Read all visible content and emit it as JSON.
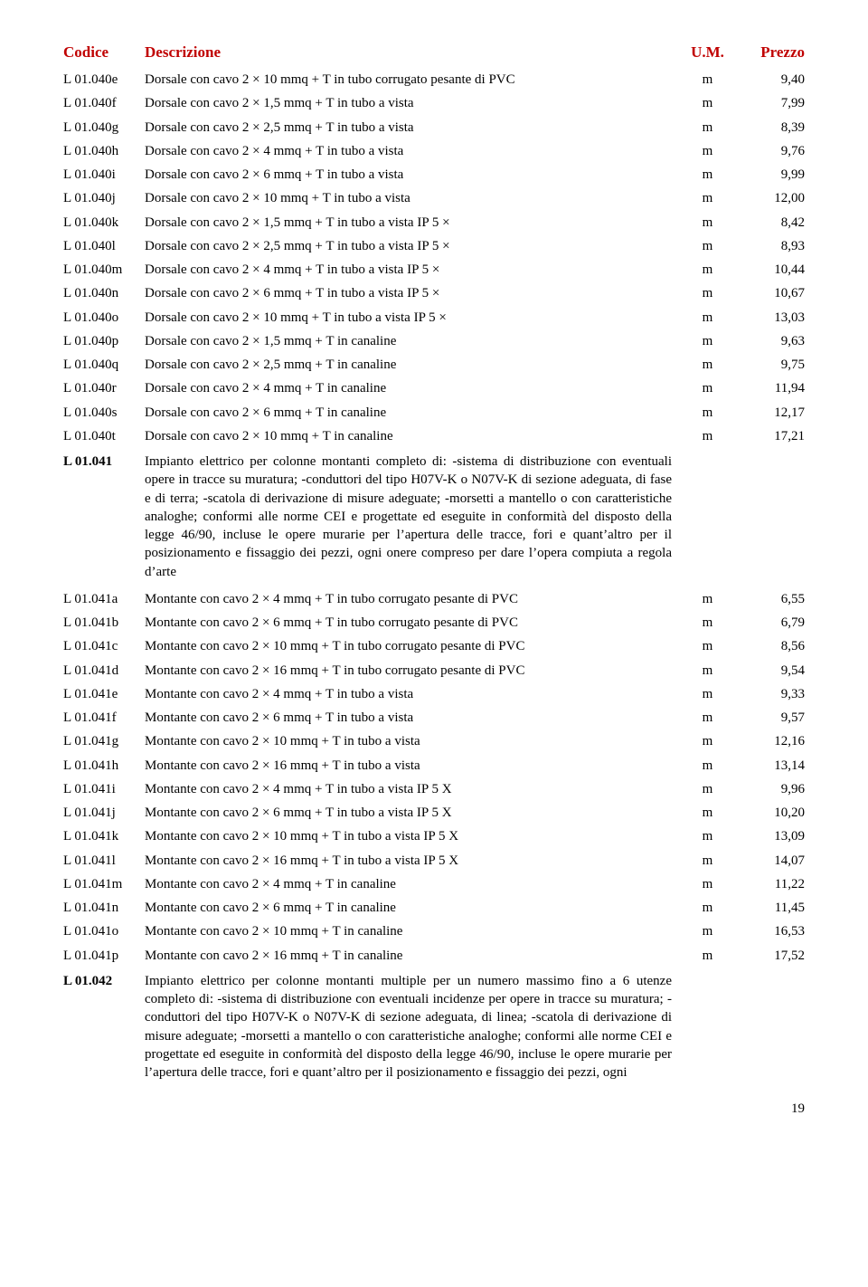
{
  "header": {
    "code": "Codice",
    "desc": "Descrizione",
    "um": "U.M.",
    "price": "Prezzo"
  },
  "colors": {
    "header_text": "#c00000",
    "body_text": "#000000",
    "background": "#ffffff"
  },
  "rows": [
    {
      "type": "item",
      "code": "L 01.040e",
      "desc": "Dorsale con cavo 2 × 10 mmq + T in tubo corrugato pesante di PVC",
      "um": "m",
      "price": "9,40"
    },
    {
      "type": "item",
      "code": "L 01.040f",
      "desc": "Dorsale con cavo 2 × 1,5 mmq + T in tubo a vista",
      "um": "m",
      "price": "7,99"
    },
    {
      "type": "item",
      "code": "L 01.040g",
      "desc": "Dorsale con cavo 2 × 2,5 mmq + T in tubo a vista",
      "um": "m",
      "price": "8,39"
    },
    {
      "type": "item",
      "code": "L 01.040h",
      "desc": "Dorsale con cavo 2 × 4 mmq + T in tubo a vista",
      "um": "m",
      "price": "9,76"
    },
    {
      "type": "item",
      "code": "L 01.040i",
      "desc": "Dorsale con cavo 2 × 6 mmq + T in tubo a vista",
      "um": "m",
      "price": "9,99"
    },
    {
      "type": "item",
      "code": "L 01.040j",
      "desc": "Dorsale con cavo 2 × 10 mmq + T in tubo a vista",
      "um": "m",
      "price": "12,00"
    },
    {
      "type": "item",
      "code": "L 01.040k",
      "desc": "Dorsale con cavo 2 × 1,5 mmq + T in tubo a vista IP 5 ×",
      "um": "m",
      "price": "8,42"
    },
    {
      "type": "item",
      "code": "L 01.040l",
      "desc": "Dorsale con cavo 2 × 2,5 mmq + T in tubo a vista IP 5 ×",
      "um": "m",
      "price": "8,93"
    },
    {
      "type": "item",
      "code": "L 01.040m",
      "desc": "Dorsale con cavo 2 × 4 mmq + T in tubo a vista IP 5 ×",
      "um": "m",
      "price": "10,44"
    },
    {
      "type": "item",
      "code": "L 01.040n",
      "desc": "Dorsale con cavo 2 × 6 mmq + T in tubo a vista IP 5 ×",
      "um": "m",
      "price": "10,67"
    },
    {
      "type": "item",
      "code": "L 01.040o",
      "desc": "Dorsale con cavo 2 × 10 mmq + T in tubo a vista IP 5 ×",
      "um": "m",
      "price": "13,03"
    },
    {
      "type": "item",
      "code": "L 01.040p",
      "desc": "Dorsale con cavo 2 × 1,5 mmq + T in canaline",
      "um": "m",
      "price": "9,63"
    },
    {
      "type": "item",
      "code": "L 01.040q",
      "desc": "Dorsale con cavo 2 × 2,5 mmq + T in canaline",
      "um": "m",
      "price": "9,75"
    },
    {
      "type": "item",
      "code": "L 01.040r",
      "desc": "Dorsale con cavo 2 × 4 mmq + T in canaline",
      "um": "m",
      "price": "11,94"
    },
    {
      "type": "item",
      "code": "L 01.040s",
      "desc": "Dorsale con cavo 2 × 6 mmq + T in canaline",
      "um": "m",
      "price": "12,17"
    },
    {
      "type": "item",
      "code": "L 01.040t",
      "desc": "Dorsale con cavo 2 × 10 mmq + T in canaline",
      "um": "m",
      "price": "17,21"
    },
    {
      "type": "section",
      "code": "L 01.041",
      "desc": "Impianto elettrico per colonne montanti completo di: -sistema di distribuzione con eventuali opere in tracce su muratura; -conduttori del tipo H07V-K o N07V-K di sezione adeguata, di fase e di terra; -scatola di derivazione di misure adeguate; -morsetti a mantello o con caratteristiche analoghe; conformi alle norme CEI e progettate ed eseguite in conformità del disposto della legge 46/90, incluse le opere murarie per l’apertura delle tracce, fori e quant’altro per il posizionamento e fissaggio dei pezzi, ogni onere compreso per dare l’opera compiuta a regola d’arte"
    },
    {
      "type": "item",
      "code": "L 01.041a",
      "desc": "Montante con cavo 2 × 4 mmq + T in tubo corrugato pesante di PVC",
      "um": "m",
      "price": "6,55"
    },
    {
      "type": "item",
      "code": "L 01.041b",
      "desc": "Montante con cavo 2 × 6 mmq + T in tubo corrugato pesante di PVC",
      "um": "m",
      "price": "6,79"
    },
    {
      "type": "item",
      "code": "L 01.041c",
      "desc": "Montante con cavo 2 × 10 mmq + T in tubo corrugato pesante di PVC",
      "um": "m",
      "price": "8,56"
    },
    {
      "type": "item",
      "code": "L 01.041d",
      "desc": "Montante con cavo 2 × 16 mmq + T in tubo corrugato pesante di PVC",
      "um": "m",
      "price": "9,54"
    },
    {
      "type": "item",
      "code": "L 01.041e",
      "desc": "Montante con cavo 2 × 4 mmq + T in tubo a vista",
      "um": "m",
      "price": "9,33"
    },
    {
      "type": "item",
      "code": "L 01.041f",
      "desc": "Montante con cavo 2 × 6 mmq + T in tubo a vista",
      "um": "m",
      "price": "9,57"
    },
    {
      "type": "item",
      "code": "L 01.041g",
      "desc": "Montante con cavo 2 × 10 mmq + T in tubo a vista",
      "um": "m",
      "price": "12,16"
    },
    {
      "type": "item",
      "code": "L 01.041h",
      "desc": "Montante con cavo 2 × 16 mmq + T in tubo a vista",
      "um": "m",
      "price": "13,14"
    },
    {
      "type": "item",
      "code": "L 01.041i",
      "desc": "Montante con cavo 2 × 4 mmq + T in tubo a vista IP 5 X",
      "um": "m",
      "price": "9,96"
    },
    {
      "type": "item",
      "code": "L 01.041j",
      "desc": "Montante con cavo 2 × 6 mmq + T in tubo a vista IP 5 X",
      "um": "m",
      "price": "10,20"
    },
    {
      "type": "item",
      "code": "L 01.041k",
      "desc": "Montante con cavo 2 × 10 mmq + T in tubo a vista IP 5 X",
      "um": "m",
      "price": "13,09"
    },
    {
      "type": "item",
      "code": "L 01.041l",
      "desc": "Montante con cavo 2 × 16 mmq + T in tubo a vista IP 5 X",
      "um": "m",
      "price": "14,07"
    },
    {
      "type": "item",
      "code": "L 01.041m",
      "desc": "Montante con cavo 2 × 4 mmq + T in canaline",
      "um": "m",
      "price": "11,22"
    },
    {
      "type": "item",
      "code": "L 01.041n",
      "desc": "Montante con cavo 2 × 6 mmq + T in canaline",
      "um": "m",
      "price": "11,45"
    },
    {
      "type": "item",
      "code": "L 01.041o",
      "desc": "Montante con cavo 2 × 10 mmq + T in canaline",
      "um": "m",
      "price": "16,53"
    },
    {
      "type": "item",
      "code": "L 01.041p",
      "desc": "Montante con cavo 2 × 16 mmq + T in canaline",
      "um": "m",
      "price": "17,52"
    },
    {
      "type": "section",
      "code": "L 01.042",
      "desc": "Impianto elettrico per colonne montanti multiple per un numero massimo fino a 6 utenze completo di: -sistema di distribuzione con eventuali incidenze per opere in tracce su muratura; -conduttori del tipo H07V-K o N07V-K di sezione adeguata, di linea; -scatola di derivazione di misure adeguate; -morsetti a mantello o con caratteristiche analoghe; conformi alle norme CEI e progettate ed eseguite in conformità del disposto della legge 46/90, incluse le opere murarie per l’apertura delle tracce, fori e quant’altro per il posizionamento e fissaggio dei pezzi, ogni"
    }
  ],
  "page_number": "19"
}
